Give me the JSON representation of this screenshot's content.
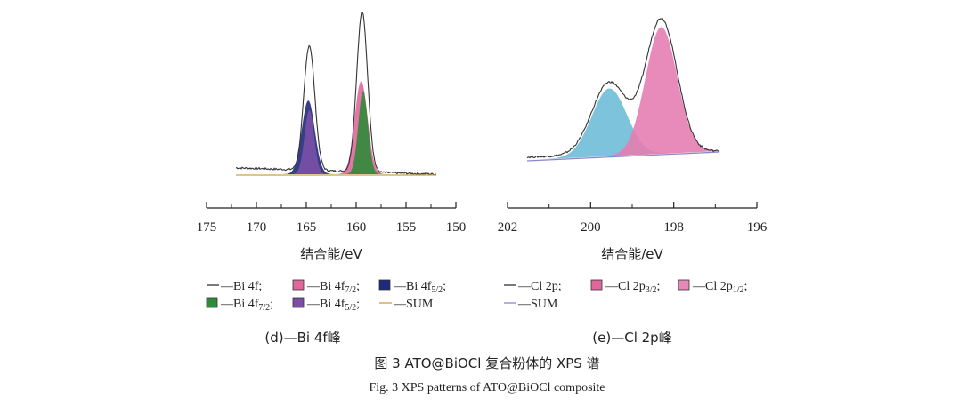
{
  "figure": {
    "caption_cn": "图 3   ATO@BiOCl 复合粉体的 XPS 谱",
    "caption_en": "Fig. 3   XPS patterns of ATO@BiOCl composite"
  },
  "chart_data": [
    {
      "type": "area",
      "subcaption": "(d)—Bi 4f峰",
      "xlabel": "结合能/eV",
      "ylabel": "",
      "xlim": [
        175,
        150
      ],
      "xticks": [
        175,
        170,
        165,
        160,
        155,
        150
      ],
      "x_reversed": true,
      "y_ticks_shown": false,
      "grid": false,
      "legend_placement": "bottom",
      "legend": [
        {
          "marker": "line",
          "color": "#333333",
          "label": "—Bi 4f;"
        },
        {
          "marker": "box",
          "color": "#e0679c",
          "label": "—Bi 4f",
          "subscript": "7/2",
          "suffix": ";"
        },
        {
          "marker": "box",
          "color": "#1f2a7a",
          "label": "—Bi 4f",
          "subscript": "5/2",
          "suffix": ";"
        },
        {
          "marker": "box",
          "color": "#2e8b3a",
          "label": "—Bi 4f",
          "subscript": "7/2",
          "suffix": ";"
        },
        {
          "marker": "box",
          "color": "#7b4fa8",
          "label": "—Bi 4f",
          "subscript": "5/2",
          "suffix": ";"
        },
        {
          "marker": "line",
          "color": "#c9a24a",
          "label": "—SUM"
        }
      ],
      "peaks": [
        {
          "center": 159.5,
          "height": 0.58,
          "width": 0.65,
          "color": "#e0679c"
        },
        {
          "center": 164.8,
          "height": 0.46,
          "width": 0.65,
          "color": "#1f2a7a"
        },
        {
          "center": 159.3,
          "height": 0.52,
          "width": 0.48,
          "color": "#2e8b3a"
        },
        {
          "center": 164.7,
          "height": 0.4,
          "width": 0.48,
          "color": "#7b4fa8"
        }
      ],
      "raw_peaks": [
        {
          "center": 159.4,
          "height": 1.0,
          "width": 0.55
        },
        {
          "center": 164.7,
          "height": 0.78,
          "width": 0.55
        }
      ],
      "baseline": {
        "start": 0.04,
        "end": 0.0
      }
    },
    {
      "type": "area",
      "subcaption": "(e)—Cl 2p峰",
      "xlabel": "结合能/eV",
      "ylabel": "",
      "xlim": [
        202,
        196
      ],
      "xticks": [
        202,
        200,
        198,
        196
      ],
      "x_reversed": true,
      "y_ticks_shown": false,
      "grid": false,
      "legend_placement": "bottom",
      "legend": [
        {
          "marker": "line",
          "color": "#333333",
          "label": "—Cl 2p;"
        },
        {
          "marker": "box",
          "color": "#e0679c",
          "label": "—Cl 2p",
          "subscript": "3/2",
          "suffix": ";"
        },
        {
          "marker": "box",
          "color": "#e48ab8",
          "label": "—Cl 2p",
          "subscript": "1/2",
          "suffix": ";"
        },
        {
          "marker": "line",
          "color": "#8a86c9",
          "label": "—SUM"
        }
      ],
      "peaks": [
        {
          "center": 199.55,
          "height": 0.47,
          "width": 0.42,
          "color": "#6fbcd8"
        },
        {
          "center": 198.3,
          "height": 0.88,
          "width": 0.38,
          "color": "#e67eb2"
        }
      ],
      "raw_peaks": [
        {
          "center": 199.55,
          "height": 0.5,
          "width": 0.42
        },
        {
          "center": 198.3,
          "height": 0.93,
          "width": 0.38
        }
      ],
      "baseline": {
        "start": 0.02,
        "end": 0.0
      }
    }
  ]
}
